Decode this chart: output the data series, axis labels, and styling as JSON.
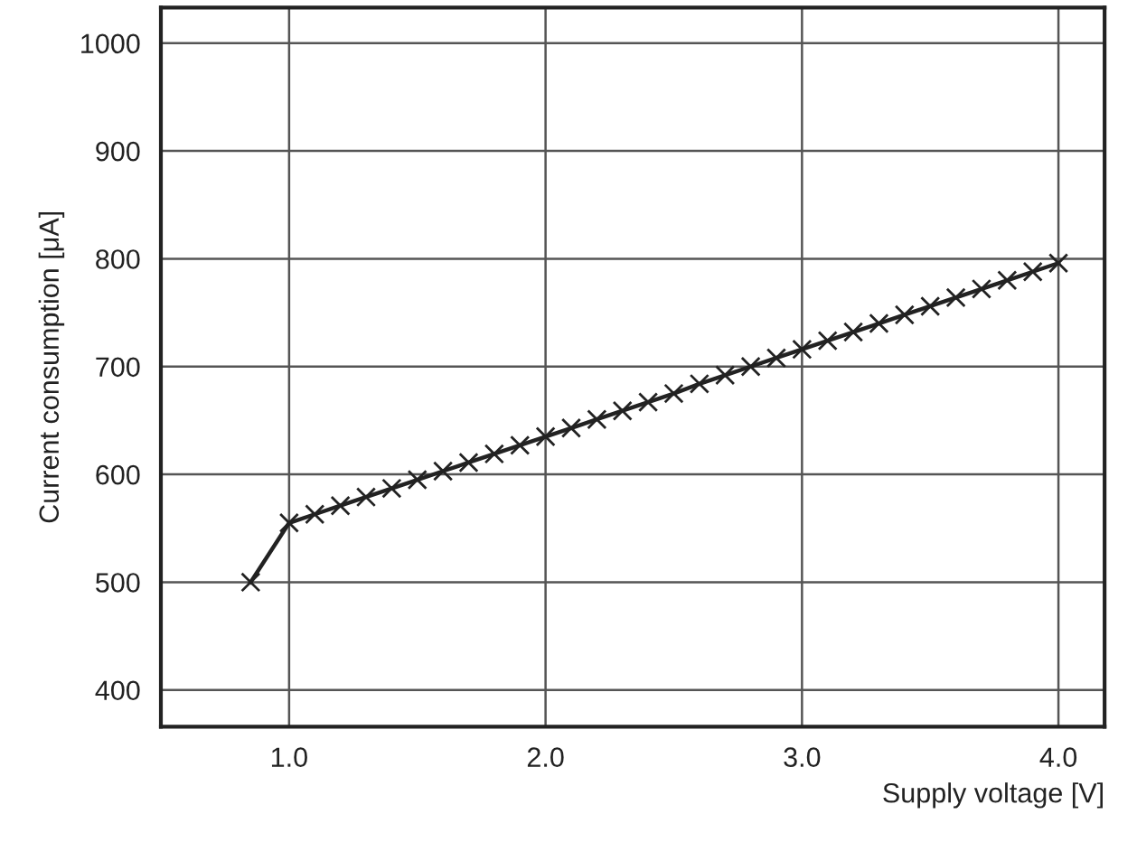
{
  "chart_data": {
    "type": "line",
    "xlabel": "Supply voltage [V]",
    "ylabel": "Current consumption [μA]",
    "x": [
      0.85,
      1.0,
      1.1,
      1.2,
      1.3,
      1.4,
      1.5,
      1.6,
      1.7,
      1.8,
      1.9,
      2.0,
      2.1,
      2.2,
      2.3,
      2.4,
      2.5,
      2.6,
      2.7,
      2.8,
      2.9,
      3.0,
      3.1,
      3.2,
      3.3,
      3.4,
      3.5,
      3.6,
      3.7,
      3.8,
      3.9,
      4.0
    ],
    "series": [
      {
        "color": "#222222",
        "values": [
          500,
          555,
          563,
          571,
          579,
          587,
          595,
          603,
          611,
          619,
          627,
          635,
          643,
          651,
          659,
          667,
          675,
          684,
          692,
          700,
          708,
          716,
          724,
          732,
          740,
          748,
          756,
          764,
          772,
          780,
          788,
          796
        ]
      }
    ],
    "xlim": [
      0.5,
      4.18
    ],
    "ylim": [
      366,
      1033
    ],
    "xticks": [
      {
        "value": 1,
        "label": "1.0"
      },
      {
        "value": 2,
        "label": "2.0"
      },
      {
        "value": 3,
        "label": "3.0"
      },
      {
        "value": 4,
        "label": "4.0"
      }
    ],
    "yticks": [
      400,
      500,
      600,
      700,
      800,
      900,
      1000
    ],
    "grid": true,
    "marker": "cross",
    "line_style": "solid"
  }
}
